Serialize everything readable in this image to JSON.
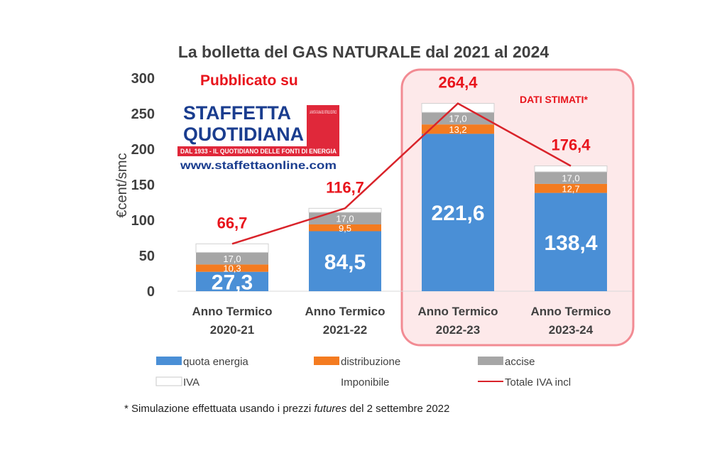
{
  "chart_data": {
    "type": "bar",
    "stacked": true,
    "title": "La bolletta del GAS NATURALE dal 2021 al 2024",
    "ylabel": "€cent/smc",
    "ylim": [
      0,
      300
    ],
    "yticks": [
      "0",
      "50",
      "100",
      "150",
      "200",
      "250",
      "300"
    ],
    "categories": [
      [
        "Anno Termico",
        "2020-21"
      ],
      [
        "Anno Termico",
        "2021-22"
      ],
      [
        "Anno Termico",
        "2022-23"
      ],
      [
        "Anno Termico",
        "2023-24"
      ]
    ],
    "series": [
      {
        "name": "quota energia",
        "color": "#4a8fd6",
        "values": [
          27.3,
          84.5,
          221.6,
          138.4
        ],
        "labels": [
          "27,3",
          "84,5",
          "221,6",
          "138,4"
        ]
      },
      {
        "name": "distribuzione",
        "color": "#f47b20",
        "values": [
          10.3,
          9.5,
          13.2,
          12.7
        ],
        "labels": [
          "10,3",
          "9,5",
          "13,2",
          "12,7"
        ]
      },
      {
        "name": "accise",
        "color": "#a6a6a6",
        "values": [
          17.0,
          17.0,
          17.0,
          17.0
        ],
        "labels": [
          "17,0",
          "17,0",
          "17,0",
          "17,0"
        ]
      },
      {
        "name": "IVA",
        "color": "#ffffff",
        "values": [
          12.1,
          5.7,
          12.6,
          8.3
        ]
      },
      {
        "name": "Imponibile"
      },
      {
        "name": "Totale IVA incl",
        "type": "line",
        "color": "#d9232a",
        "values": [
          66.7,
          116.7,
          264.4,
          176.4
        ],
        "labels": [
          "66,7",
          "116,7",
          "264,4",
          "176,4"
        ]
      }
    ],
    "annotations": {
      "published": "Pubblicato su",
      "estimated": "DATI STIMATI*",
      "footnote_prefix": "* Simulazione effettuata usando i prezzi ",
      "footnote_italic": "futures",
      "footnote_suffix": " del 2 settembre 2022"
    },
    "logo": {
      "name_line1": "STAFFETTA",
      "name_line2": "QUOTIDIANA",
      "tagline": "DAL 1933 - IL QUOTIDIANO DELLE FONTI DI ENERGIA",
      "url": "www.staffettaonline.com",
      "book_text": "LA RIVISTA ITALIANA DEL PETROLIO EDITRICE"
    },
    "grid": false,
    "legend_position": "bottom"
  }
}
